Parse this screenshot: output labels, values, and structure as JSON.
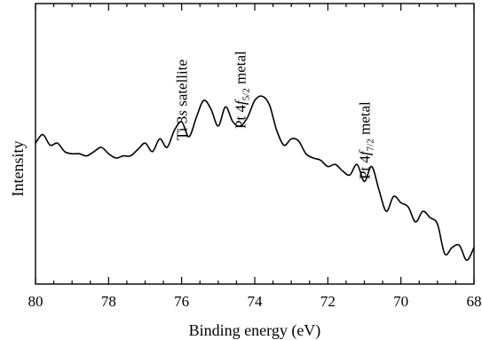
{
  "chart_data": {
    "type": "line",
    "title": "",
    "xlabel": "Binding energy (eV)",
    "ylabel": "Intensity",
    "xlim": [
      80,
      68
    ],
    "ylim": [
      0,
      1
    ],
    "x_reversed": true,
    "x_ticks": [
      80,
      78,
      76,
      74,
      72,
      70,
      68
    ],
    "x_tick_labels": [
      "80",
      "78",
      "76",
      "74",
      "72",
      "70",
      "68"
    ],
    "y_ticks_labeled": false,
    "grid": false,
    "legend": "none",
    "series": [
      {
        "color": "#000000",
        "x": [
          80.0,
          79.8,
          79.6,
          79.4,
          79.2,
          79.0,
          78.8,
          78.6,
          78.4,
          78.2,
          78.0,
          77.8,
          77.6,
          77.4,
          77.2,
          77.0,
          76.8,
          76.6,
          76.4,
          76.2,
          76.0,
          75.8,
          75.6,
          75.4,
          75.2,
          75.0,
          74.8,
          74.6,
          74.4,
          74.2,
          74.0,
          73.8,
          73.6,
          73.4,
          73.2,
          73.0,
          72.8,
          72.6,
          72.4,
          72.2,
          72.0,
          71.8,
          71.6,
          71.4,
          71.2,
          71.0,
          70.8,
          70.6,
          70.4,
          70.2,
          70.0,
          69.8,
          69.6,
          69.4,
          69.2,
          69.0,
          68.8,
          68.6,
          68.4,
          68.2,
          68.0
        ],
        "y": [
          0.62,
          0.66,
          0.61,
          0.62,
          0.58,
          0.57,
          0.57,
          0.56,
          0.58,
          0.6,
          0.57,
          0.55,
          0.56,
          0.56,
          0.59,
          0.62,
          0.58,
          0.64,
          0.6,
          0.68,
          0.72,
          0.65,
          0.74,
          0.82,
          0.78,
          0.7,
          0.79,
          0.72,
          0.7,
          0.74,
          0.82,
          0.84,
          0.8,
          0.68,
          0.61,
          0.64,
          0.63,
          0.57,
          0.55,
          0.54,
          0.51,
          0.52,
          0.49,
          0.47,
          0.52,
          0.44,
          0.51,
          0.4,
          0.3,
          0.37,
          0.34,
          0.32,
          0.25,
          0.3,
          0.27,
          0.24,
          0.1,
          0.13,
          0.14,
          0.07,
          0.13
        ]
      }
    ],
    "annotations": [
      {
        "text_main": "Ti 3",
        "text_italic": "s",
        "text_tail": " satellite",
        "x": 76.0
      },
      {
        "text_main": "Pt 4",
        "text_italic": "f",
        "text_sub": "5/2",
        "text_tail": " metal",
        "x": 74.4
      },
      {
        "text_main": "Pt 4",
        "text_italic": "f",
        "text_sub": "7/2",
        "text_tail": " metal",
        "x": 71.0
      }
    ]
  }
}
